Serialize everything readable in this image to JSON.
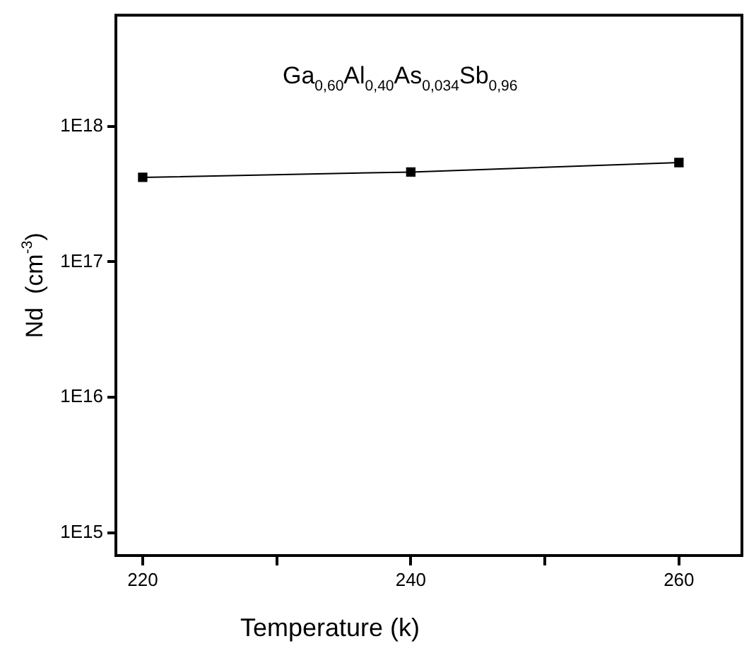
{
  "chart_data": {
    "type": "line",
    "xlabel": "Temperature (k)",
    "ylabel": "Nd  (cm$^{-3}$)",
    "annotations": [
      "Ga$_{0,60}$Al$_{0,40}$As$_{0,034}$Sb$_{0,96}$"
    ],
    "x": [
      220,
      240,
      260
    ],
    "series": [
      {
        "color": "#000000",
        "values": [
          4.2e+17,
          4.6e+17,
          5.4e+17
        ]
      }
    ],
    "log": "y",
    "grid": false,
    "legend": false,
    "marker": "square",
    "line_style": "solid",
    "xlim": [
      218,
      264.7
    ],
    "xticks": [
      220,
      {
        "value": 230,
        "label": null
      },
      240,
      {
        "value": 250,
        "label": null
      },
      260
    ],
    "ylim": [
      680000000000000.0,
      6.6e+18
    ],
    "yticks": [
      {
        "value": 1000000000000000.0,
        "label": "1E15"
      },
      {
        "value": 1e+16,
        "label": "1E16"
      },
      {
        "value": 1e+17,
        "label": "1E17"
      },
      {
        "value": 1e+18,
        "label": "1E18"
      }
    ]
  }
}
